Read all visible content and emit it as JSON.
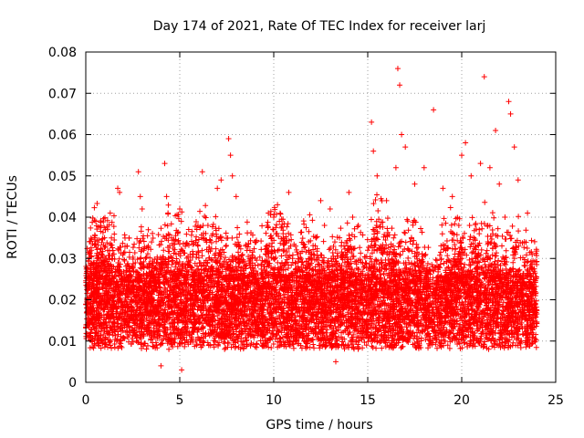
{
  "chart_data": {
    "type": "scatter",
    "title": "Day 174 of 2021, Rate Of TEC Index for receiver larj",
    "xlabel": "GPS time / hours",
    "ylabel": "ROTI / TECUs",
    "xlim": [
      0,
      25
    ],
    "ylim": [
      0,
      0.08
    ],
    "xticks": [
      0,
      5,
      10,
      15,
      20,
      25
    ],
    "xtick_labels": [
      "0",
      "5",
      "10",
      "15",
      "20",
      "25"
    ],
    "yticks": [
      0,
      0.01,
      0.02,
      0.03,
      0.04,
      0.05,
      0.06,
      0.07,
      0.08
    ],
    "ytick_labels": [
      "0",
      "0.01",
      "0.02",
      "0.03",
      "0.04",
      "0.05",
      "0.06",
      "0.07",
      "0.08"
    ],
    "grid": true,
    "marker": "plus",
    "marker_color": "#ff0000",
    "data_x_range": [
      0,
      24
    ],
    "series": [
      {
        "points": [
          [
            0.05,
            0.018
          ],
          [
            0.3,
            0.032
          ],
          [
            0.6,
            0.03
          ],
          [
            1.0,
            0.035
          ],
          [
            1.3,
            0.041
          ],
          [
            1.7,
            0.047
          ],
          [
            1.8,
            0.046
          ],
          [
            2.2,
            0.033
          ],
          [
            2.8,
            0.051
          ],
          [
            2.9,
            0.045
          ],
          [
            3.0,
            0.042
          ],
          [
            3.5,
            0.034
          ],
          [
            4.0,
            0.004
          ],
          [
            4.2,
            0.053
          ],
          [
            4.3,
            0.045
          ],
          [
            5.0,
            0.042
          ],
          [
            5.1,
            0.003
          ],
          [
            5.5,
            0.029
          ],
          [
            6.2,
            0.051
          ],
          [
            6.5,
            0.038
          ],
          [
            7.0,
            0.047
          ],
          [
            7.2,
            0.049
          ],
          [
            7.6,
            0.059
          ],
          [
            7.7,
            0.055
          ],
          [
            7.8,
            0.05
          ],
          [
            8.0,
            0.045
          ],
          [
            8.5,
            0.033
          ],
          [
            9.0,
            0.034
          ],
          [
            9.5,
            0.028
          ],
          [
            10.0,
            0.04
          ],
          [
            10.2,
            0.043
          ],
          [
            10.3,
            0.039
          ],
          [
            10.5,
            0.036
          ],
          [
            10.8,
            0.046
          ],
          [
            11.0,
            0.03
          ],
          [
            11.5,
            0.025
          ],
          [
            12.0,
            0.03
          ],
          [
            12.5,
            0.044
          ],
          [
            12.7,
            0.038
          ],
          [
            13.0,
            0.042
          ],
          [
            13.3,
            0.005
          ],
          [
            13.5,
            0.035
          ],
          [
            14.0,
            0.046
          ],
          [
            14.2,
            0.04
          ],
          [
            14.5,
            0.038
          ],
          [
            15.0,
            0.032
          ],
          [
            15.2,
            0.063
          ],
          [
            15.3,
            0.056
          ],
          [
            15.5,
            0.05
          ],
          [
            16.0,
            0.044
          ],
          [
            16.5,
            0.052
          ],
          [
            16.6,
            0.076
          ],
          [
            16.7,
            0.072
          ],
          [
            16.8,
            0.06
          ],
          [
            17.0,
            0.057
          ],
          [
            17.5,
            0.048
          ],
          [
            18.0,
            0.052
          ],
          [
            18.5,
            0.066
          ],
          [
            19.0,
            0.047
          ],
          [
            19.5,
            0.045
          ],
          [
            20.0,
            0.055
          ],
          [
            20.2,
            0.058
          ],
          [
            20.5,
            0.05
          ],
          [
            21.0,
            0.053
          ],
          [
            21.2,
            0.074
          ],
          [
            21.5,
            0.052
          ],
          [
            21.8,
            0.061
          ],
          [
            22.0,
            0.048
          ],
          [
            22.3,
            0.04
          ],
          [
            22.5,
            0.068
          ],
          [
            22.6,
            0.065
          ],
          [
            22.8,
            0.057
          ],
          [
            23.0,
            0.049
          ],
          [
            23.5,
            0.041
          ],
          [
            23.9,
            0.022
          ]
        ]
      }
    ]
  }
}
